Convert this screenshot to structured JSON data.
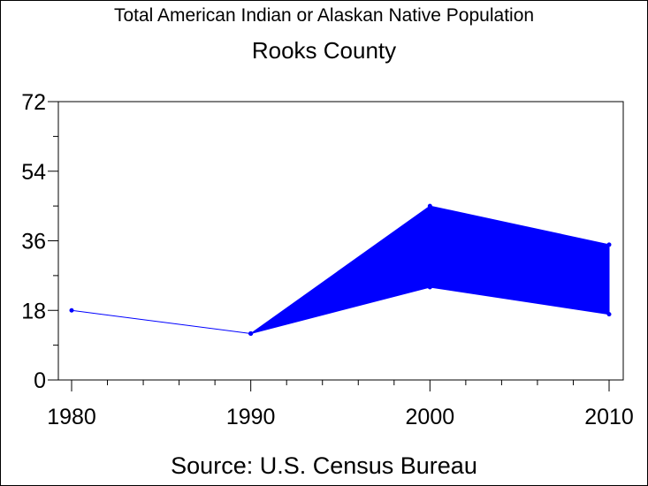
{
  "chart_data": {
    "type": "line",
    "title": "Total American Indian or Alaskan Native Population",
    "subtitle": "Rooks County",
    "source": "Source: U.S. Census Bureau",
    "xlabel": "",
    "ylabel": "",
    "x": [
      1980,
      1990,
      2000,
      2010
    ],
    "x_tick_labels": [
      "1980",
      "1990",
      "2000",
      "2010"
    ],
    "xlim": [
      1980,
      2010
    ],
    "y_ticks": [
      0,
      18,
      36,
      54,
      72
    ],
    "y_tick_labels": [
      "0",
      "18",
      "36",
      "54",
      "72"
    ],
    "ylim": [
      0,
      72
    ],
    "series": [
      {
        "values": [
          18,
          12,
          null,
          null
        ]
      }
    ],
    "range_band": {
      "x": [
        1990,
        2000,
        2010
      ],
      "low": [
        12,
        24,
        17
      ],
      "high": [
        12,
        45,
        35
      ]
    },
    "colors": {
      "series": "#0000ff",
      "axis": "#000000"
    },
    "grid": false
  }
}
